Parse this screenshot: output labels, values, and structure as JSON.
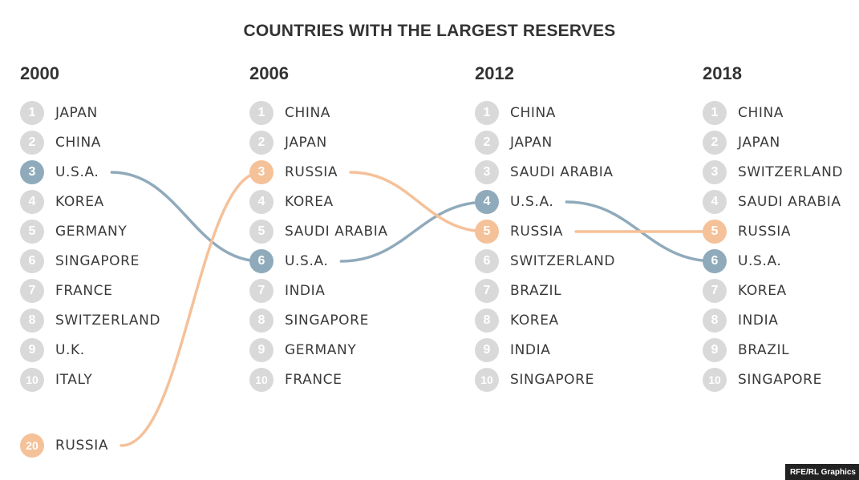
{
  "chart_data": {
    "type": "bump",
    "title": "COUNTRIES WITH THE LARGEST RESERVES",
    "columns": [
      {
        "year": "2000",
        "rows": [
          {
            "rank": 1,
            "country": "JAPAN"
          },
          {
            "rank": 2,
            "country": "CHINA"
          },
          {
            "rank": 3,
            "country": "U.S.A.",
            "highlight": "usa"
          },
          {
            "rank": 4,
            "country": "KOREA"
          },
          {
            "rank": 5,
            "country": "GERMANY"
          },
          {
            "rank": 6,
            "country": "SINGAPORE"
          },
          {
            "rank": 7,
            "country": "FRANCE"
          },
          {
            "rank": 8,
            "country": "SWITZERLAND"
          },
          {
            "rank": 9,
            "country": "U.K."
          },
          {
            "rank": 10,
            "country": "ITALY"
          },
          {
            "rank": 20,
            "country": "RUSSIA",
            "highlight": "russia"
          }
        ]
      },
      {
        "year": "2006",
        "rows": [
          {
            "rank": 1,
            "country": "CHINA"
          },
          {
            "rank": 2,
            "country": "JAPAN"
          },
          {
            "rank": 3,
            "country": "RUSSIA",
            "highlight": "russia"
          },
          {
            "rank": 4,
            "country": "KOREA"
          },
          {
            "rank": 5,
            "country": "SAUDI ARABIA"
          },
          {
            "rank": 6,
            "country": "U.S.A.",
            "highlight": "usa"
          },
          {
            "rank": 7,
            "country": "INDIA"
          },
          {
            "rank": 8,
            "country": "SINGAPORE"
          },
          {
            "rank": 9,
            "country": "GERMANY"
          },
          {
            "rank": 10,
            "country": "FRANCE"
          }
        ]
      },
      {
        "year": "2012",
        "rows": [
          {
            "rank": 1,
            "country": "CHINA"
          },
          {
            "rank": 2,
            "country": "JAPAN"
          },
          {
            "rank": 3,
            "country": "SAUDI ARABIA"
          },
          {
            "rank": 4,
            "country": "U.S.A.",
            "highlight": "usa"
          },
          {
            "rank": 5,
            "country": "RUSSIA",
            "highlight": "russia"
          },
          {
            "rank": 6,
            "country": "SWITZERLAND"
          },
          {
            "rank": 7,
            "country": "BRAZIL"
          },
          {
            "rank": 8,
            "country": "KOREA"
          },
          {
            "rank": 9,
            "country": "INDIA"
          },
          {
            "rank": 10,
            "country": "SINGAPORE"
          }
        ]
      },
      {
        "year": "2018",
        "rows": [
          {
            "rank": 1,
            "country": "CHINA"
          },
          {
            "rank": 2,
            "country": "JAPAN"
          },
          {
            "rank": 3,
            "country": "SWITZERLAND"
          },
          {
            "rank": 4,
            "country": "SAUDI ARABIA"
          },
          {
            "rank": 5,
            "country": "RUSSIA",
            "highlight": "russia"
          },
          {
            "rank": 6,
            "country": "U.S.A.",
            "highlight": "usa"
          },
          {
            "rank": 7,
            "country": "KOREA"
          },
          {
            "rank": 8,
            "country": "INDIA"
          },
          {
            "rank": 9,
            "country": "BRAZIL"
          },
          {
            "rank": 10,
            "country": "SINGAPORE"
          }
        ]
      }
    ],
    "colors": {
      "usa": "#8faabb",
      "russia": "#f5c199",
      "default_circle": "#d9d9d9",
      "text": "#3a3a3a"
    }
  },
  "credit": "RFE/RL Graphics"
}
